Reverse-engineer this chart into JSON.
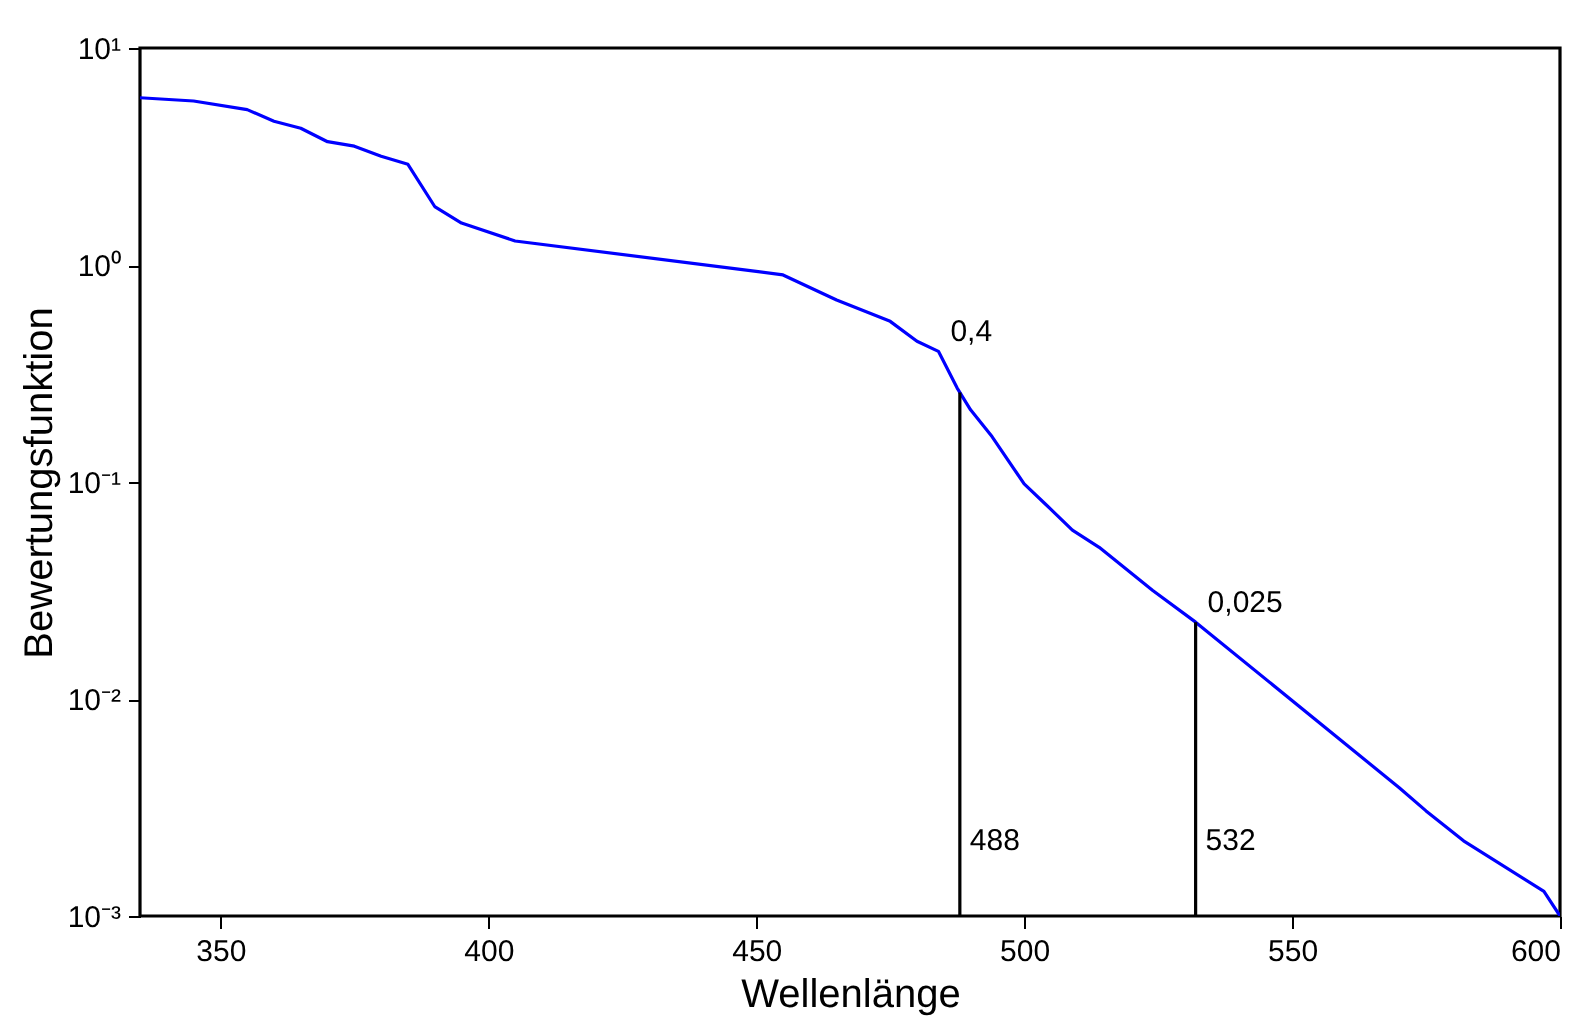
{
  "chart_data": {
    "type": "line",
    "xlabel": "Wellenlänge",
    "ylabel": "Bewertungsfunktion",
    "log": "y",
    "grid": false,
    "xlim": [
      335,
      600
    ],
    "xticks": [
      350,
      400,
      450,
      500,
      550,
      600
    ],
    "ylim": [
      0.001,
      10
    ],
    "yticks": [
      {
        "value": 10,
        "label": "10¹"
      },
      {
        "value": 1,
        "label": "10⁰"
      },
      {
        "value": 0.1,
        "label": "10⁻¹"
      },
      {
        "value": 0.01,
        "label": "10⁻²"
      },
      {
        "value": 0.001,
        "label": "10⁻³"
      }
    ],
    "series": [
      {
        "color": "#0000ff",
        "x": [
          335,
          345,
          355,
          360,
          365,
          370,
          375,
          380,
          385,
          390,
          395,
          405,
          450,
          455,
          465,
          475,
          480,
          484,
          487.5,
          490,
          494,
          500,
          504,
          509,
          514,
          524,
          532,
          570,
          575,
          582,
          597,
          600
        ],
        "values": [
          5.9,
          5.7,
          5.2,
          4.6,
          4.27,
          3.7,
          3.53,
          3.17,
          2.91,
          1.86,
          1.56,
          1.29,
          0.935,
          0.9,
          0.69,
          0.55,
          0.445,
          0.4,
          0.271,
          0.215,
          0.162,
          0.098,
          0.079,
          0.06,
          0.05,
          0.0316,
          0.0226,
          0.0039,
          0.00305,
          0.00222,
          0.0013,
          0.001
        ]
      }
    ],
    "ref_lines": [
      {
        "axis": "x",
        "value": 488,
        "label": "488",
        "color": "#000000"
      },
      {
        "axis": "x",
        "value": 532,
        "label": "532",
        "color": "#000000"
      }
    ],
    "annotations": [
      {
        "text": "0,4",
        "x": 484,
        "y": 0.4
      },
      {
        "text": "0,025",
        "x": 532,
        "y": 0.0226
      }
    ]
  }
}
